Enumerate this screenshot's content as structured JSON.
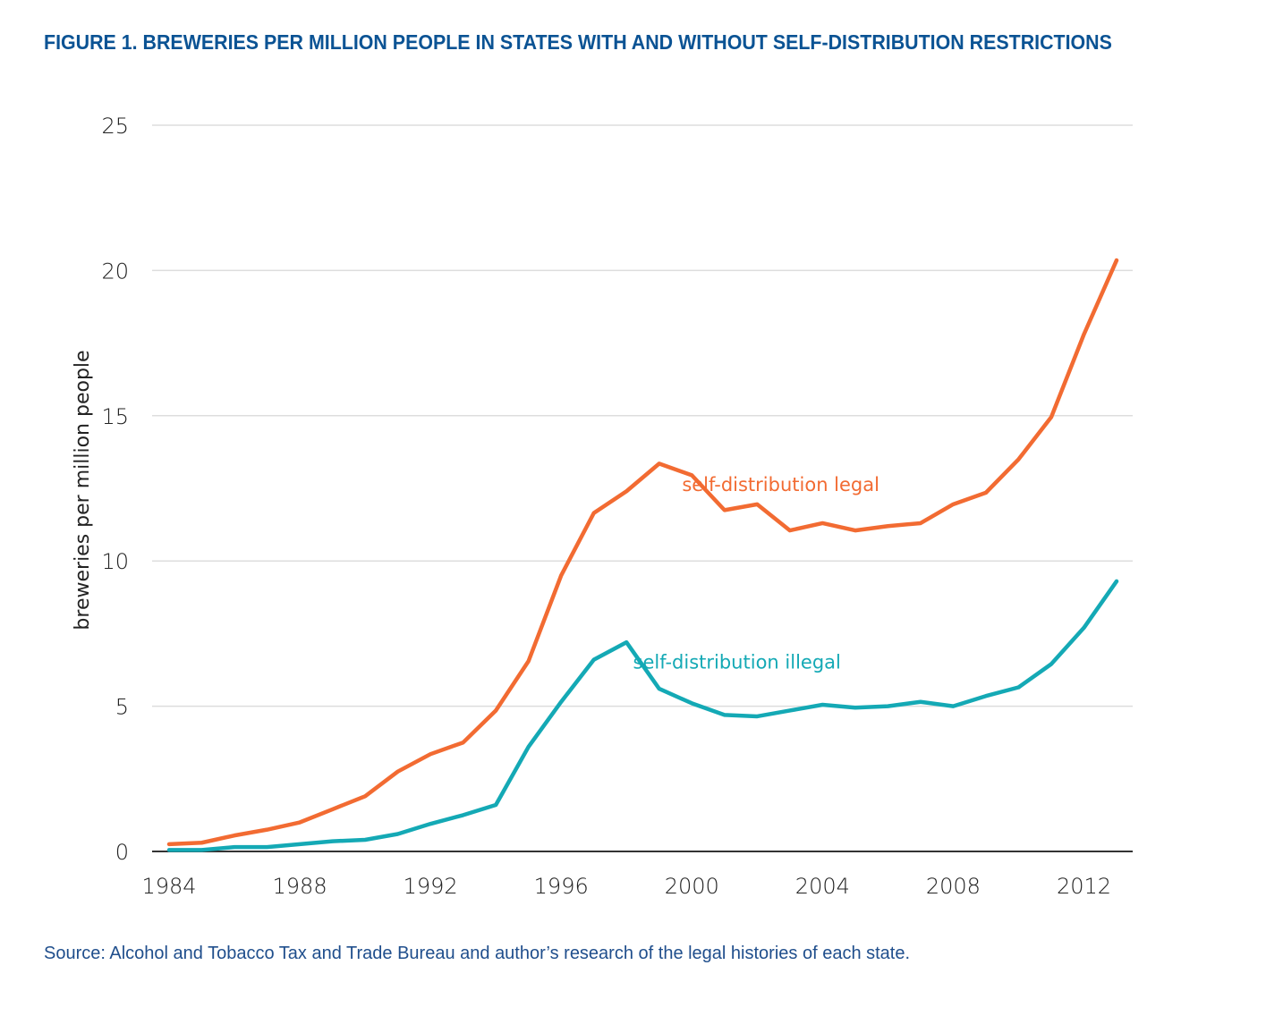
{
  "chart_data": {
    "type": "line",
    "title": "FIGURE 1. BREWERIES PER MILLION PEOPLE IN STATES WITH AND WITHOUT SELF-DISTRIBUTION RESTRICTIONS",
    "xlabel": "",
    "ylabel": "breweries per million people",
    "x": [
      1984,
      1985,
      1986,
      1987,
      1988,
      1989,
      1990,
      1991,
      1992,
      1993,
      1994,
      1995,
      1996,
      1997,
      1998,
      1999,
      2000,
      2001,
      2002,
      2003,
      2004,
      2005,
      2006,
      2007,
      2008,
      2009,
      2010,
      2011,
      2012,
      2013
    ],
    "xticks": [
      "1984",
      "1988",
      "1992",
      "1996",
      "2000",
      "2004",
      "2008",
      "2012"
    ],
    "xtick_values": [
      1984,
      1988,
      1992,
      1996,
      2000,
      2004,
      2008,
      2012
    ],
    "yticks": [
      "0",
      "5",
      "10",
      "15",
      "20",
      "25"
    ],
    "ytick_values": [
      0,
      5,
      10,
      15,
      20,
      25
    ],
    "xlim": [
      1984,
      2013
    ],
    "ylim": [
      0,
      25
    ],
    "grid": "horizontal",
    "legend": "inline labels",
    "series": [
      {
        "name": "self-distribution legal",
        "color": "#f26b32",
        "values": [
          0.25,
          0.3,
          0.55,
          0.75,
          1.0,
          1.45,
          1.9,
          2.75,
          3.35,
          3.75,
          4.85,
          6.55,
          9.5,
          11.65,
          12.4,
          13.35,
          12.95,
          11.75,
          11.95,
          11.05,
          11.3,
          11.05,
          11.2,
          11.3,
          11.95,
          12.35,
          13.5,
          14.95,
          17.8,
          20.35
        ],
        "label_at": [
          1999.7,
          12.4
        ]
      },
      {
        "name": "self-distribution illegal",
        "color": "#14a9b5",
        "values": [
          0.05,
          0.05,
          0.15,
          0.15,
          0.25,
          0.35,
          0.4,
          0.6,
          0.95,
          1.25,
          1.6,
          3.6,
          5.15,
          6.6,
          7.2,
          5.6,
          5.1,
          4.7,
          4.65,
          4.85,
          5.05,
          4.95,
          5.0,
          5.15,
          5.0,
          5.35,
          5.65,
          6.45,
          7.7,
          9.3
        ],
        "label_at": [
          1998.2,
          6.3
        ]
      }
    ],
    "source": "Source: Alcohol and Tobacco Tax and Trade Bureau and author’s research of the legal histories of each state."
  }
}
